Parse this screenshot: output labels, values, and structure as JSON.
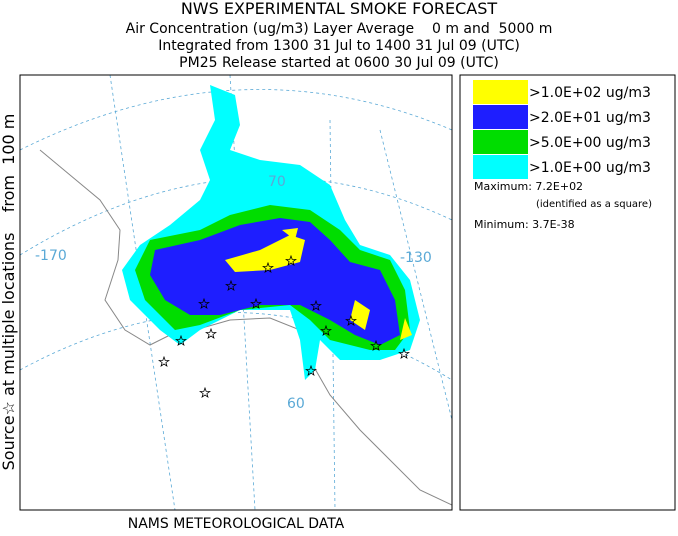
{
  "header": {
    "title": "NWS EXPERIMENTAL SMOKE FORECAST",
    "lines": [
      "Air Concentration (ug/m3) Layer Average    0 m and  5000 m",
      "Integrated from 1300 31 Jul to 1400 31 Jul 09 (UTC)",
      "PM25 Release started at 0600 30 Jul 09 (UTC)"
    ]
  },
  "side_label": "Source☆ at multiple locations    from  100 m",
  "footer": "NAMS METEOROLOGICAL DATA",
  "map_labels": {
    "lon_west": "-170",
    "lon_east": "-130",
    "lat_north": "70",
    "lat_south": "60"
  },
  "legend": {
    "items": [
      {
        "label": ">1.0E+02 ug/m3",
        "color": "#ffff00"
      },
      {
        "label": ">2.0E+01 ug/m3",
        "color": "#1e1eff"
      },
      {
        "label": ">5.0E+00 ug/m3",
        "color": "#00dd00"
      },
      {
        "label": ">1.0E+00 ug/m3",
        "color": "#00ffff"
      }
    ],
    "maximum": "Maximum: 7.2E+02",
    "maximum_note": "(identified as a square)",
    "minimum": "Minimum: 3.7E-38"
  }
}
